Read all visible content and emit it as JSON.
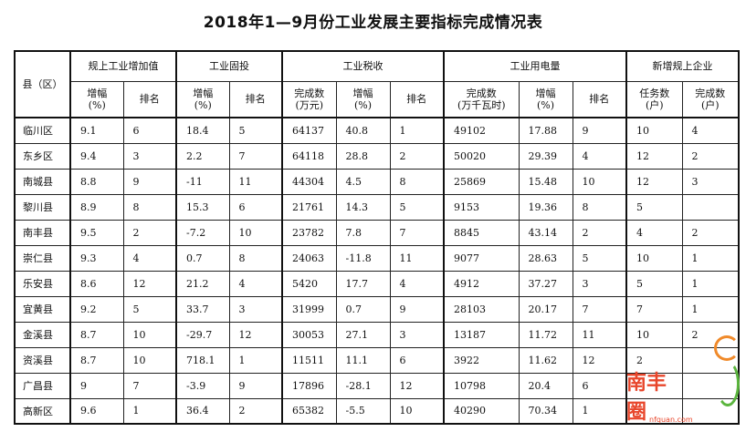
{
  "title": "2018年1—9月份工业发展主要指标完成情况表",
  "header": {
    "county": "县（区）",
    "groups": [
      "规上工业增加值",
      "工业固投",
      "工业税收",
      "工业用电量",
      "新增规上企业"
    ],
    "sub": {
      "growth": "增幅（%）",
      "growth_line1": "增幅",
      "growth_line2": "(%)",
      "rank": "排名",
      "tax_done_line1": "完成数",
      "tax_done_line2": "(万元)",
      "power_done_line1": "完成数",
      "power_done_line2": "(万千瓦时)",
      "task_line1": "任务数",
      "task_line2": "(户)",
      "done_line1": "完成数",
      "done_line2": "(户)"
    }
  },
  "rows": [
    {
      "county": "临川区",
      "va_g": "9.1",
      "va_r": "6",
      "fi_g": "18.4",
      "fi_r": "5",
      "tax_done": "64137",
      "tax_g": "40.8",
      "tax_r": "1",
      "pw_done": "49102",
      "pw_g": "17.88",
      "pw_r": "9",
      "task": "10",
      "done": "4"
    },
    {
      "county": "东乡区",
      "va_g": "9.4",
      "va_r": "3",
      "fi_g": "2.2",
      "fi_r": "7",
      "tax_done": "64118",
      "tax_g": "28.8",
      "tax_r": "2",
      "pw_done": "50020",
      "pw_g": "29.39",
      "pw_r": "4",
      "task": "12",
      "done": "2"
    },
    {
      "county": "南城县",
      "va_g": "8.8",
      "va_r": "9",
      "fi_g": "-11",
      "fi_r": "11",
      "tax_done": "44304",
      "tax_g": "4.5",
      "tax_r": "8",
      "pw_done": "25869",
      "pw_g": "15.48",
      "pw_r": "10",
      "task": "12",
      "done": "3"
    },
    {
      "county": "黎川县",
      "va_g": "8.9",
      "va_r": "8",
      "fi_g": "15.3",
      "fi_r": "6",
      "tax_done": "21761",
      "tax_g": "14.3",
      "tax_r": "5",
      "pw_done": "9153",
      "pw_g": "19.36",
      "pw_r": "8",
      "task": "5",
      "done": ""
    },
    {
      "county": "南丰县",
      "va_g": "9.5",
      "va_r": "2",
      "fi_g": "-7.2",
      "fi_r": "10",
      "tax_done": "23782",
      "tax_g": "7.8",
      "tax_r": "7",
      "pw_done": "8845",
      "pw_g": "43.14",
      "pw_r": "2",
      "task": "4",
      "done": "2"
    },
    {
      "county": "崇仁县",
      "va_g": "9.3",
      "va_r": "4",
      "fi_g": "0.7",
      "fi_r": "8",
      "tax_done": "24063",
      "tax_g": "-11.8",
      "tax_r": "11",
      "pw_done": "9077",
      "pw_g": "28.63",
      "pw_r": "5",
      "task": "10",
      "done": "1"
    },
    {
      "county": "乐安县",
      "va_g": "8.6",
      "va_r": "12",
      "fi_g": "21.2",
      "fi_r": "4",
      "tax_done": "5420",
      "tax_g": "17.7",
      "tax_r": "4",
      "pw_done": "4912",
      "pw_g": "37.27",
      "pw_r": "3",
      "task": "5",
      "done": "1"
    },
    {
      "county": "宜黄县",
      "va_g": "9.2",
      "va_r": "5",
      "fi_g": "33.7",
      "fi_r": "3",
      "tax_done": "31999",
      "tax_g": "0.7",
      "tax_r": "9",
      "pw_done": "28103",
      "pw_g": "20.17",
      "pw_r": "7",
      "task": "7",
      "done": "1"
    },
    {
      "county": "金溪县",
      "va_g": "8.7",
      "va_r": "10",
      "fi_g": "-29.7",
      "fi_r": "12",
      "tax_done": "30053",
      "tax_g": "27.1",
      "tax_r": "3",
      "pw_done": "13187",
      "pw_g": "11.72",
      "pw_r": "11",
      "task": "10",
      "done": "2"
    },
    {
      "county": "资溪县",
      "va_g": "8.7",
      "va_r": "10",
      "fi_g": "718.1",
      "fi_r": "1",
      "tax_done": "11511",
      "tax_g": "11.1",
      "tax_r": "6",
      "pw_done": "3922",
      "pw_g": "11.62",
      "pw_r": "12",
      "task": "2",
      "done": ""
    },
    {
      "county": "广昌县",
      "va_g": "9",
      "va_r": "7",
      "fi_g": "-3.9",
      "fi_r": "9",
      "tax_done": "17896",
      "tax_g": "-28.1",
      "tax_r": "12",
      "pw_done": "10798",
      "pw_g": "20.4",
      "pw_r": "6",
      "task": "",
      "done": ""
    },
    {
      "county": "高新区",
      "va_g": "9.6",
      "va_r": "1",
      "fi_g": "36.4",
      "fi_r": "2",
      "tax_done": "65382",
      "tax_g": "-5.5",
      "tax_r": "10",
      "pw_done": "40290",
      "pw_g": "70.34",
      "pw_r": "1",
      "task": "",
      "done": ""
    }
  ],
  "watermark": {
    "text": "南丰圈",
    "url": "nfquan.com",
    "color": "#e8462b"
  }
}
